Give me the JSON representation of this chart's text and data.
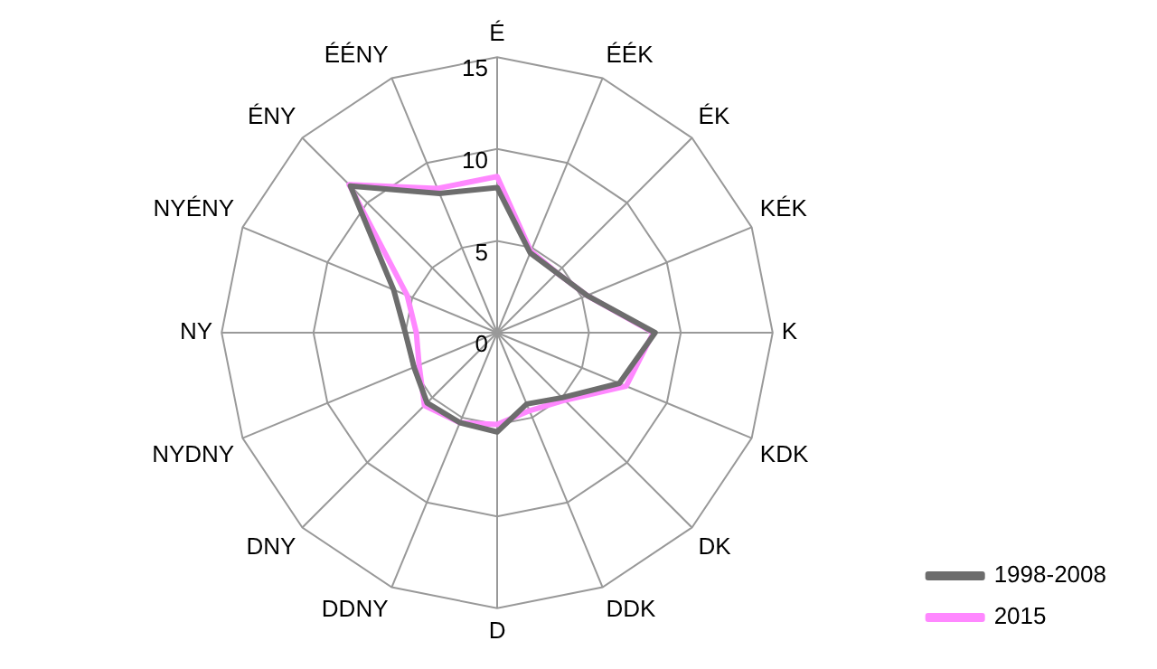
{
  "chart_data": {
    "type": "radar",
    "categories": [
      "É",
      "ÉÉK",
      "ÉK",
      "KÉK",
      "K",
      "KDK",
      "DK",
      "DDK",
      "D",
      "DDNY",
      "DNY",
      "NYDNY",
      "NY",
      "NYÉNY",
      "ÉNY",
      "ÉÉNY"
    ],
    "series": [
      {
        "name": "1998-2008",
        "color": "#6d6d6d",
        "values": [
          7.9,
          4.7,
          4.6,
          5.3,
          8.6,
          7.2,
          5.0,
          4.2,
          5.4,
          5.3,
          5.4,
          4.9,
          5.0,
          6.1,
          11.3,
          8.2
        ]
      },
      {
        "name": "2015",
        "color": "#ff88ff",
        "values": [
          8.5,
          4.8,
          4.6,
          5.3,
          8.5,
          7.6,
          5.2,
          4.6,
          5.0,
          5.3,
          5.6,
          4.6,
          4.4,
          5.3,
          11.4,
          8.5
        ]
      }
    ],
    "ylim": [
      0,
      15
    ],
    "yticks": [
      0,
      5,
      10,
      15
    ],
    "legend": "bottom right",
    "marker": "none",
    "grid": true
  }
}
